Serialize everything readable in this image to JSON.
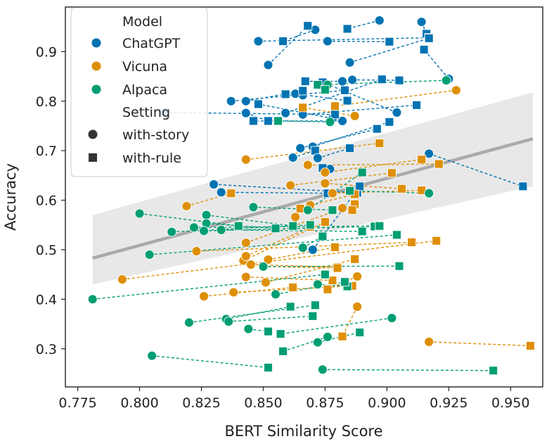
{
  "chart_data": {
    "type": "scatter",
    "xlabel": "BERT Similarity Score",
    "ylabel": "Accuracy",
    "xlim": [
      0.77,
      0.963
    ],
    "ylim": [
      0.223,
      0.99
    ],
    "x_ticks": [
      "0.775",
      "0.800",
      "0.825",
      "0.850",
      "0.875",
      "0.900",
      "0.925",
      "0.950"
    ],
    "y_ticks": [
      "0.3",
      "0.4",
      "0.5",
      "0.6",
      "0.7",
      "0.8",
      "0.9"
    ],
    "grid": false,
    "legend": {
      "placement": "top-left",
      "model_title": "Model",
      "setting_title": "Setting",
      "models": [
        {
          "name": "ChatGPT",
          "color": "#0173b2"
        },
        {
          "name": "Vicuna",
          "color": "#de8f05"
        },
        {
          "name": "Alpaca",
          "color": "#029e73"
        }
      ],
      "settings": [
        {
          "name": "with-story",
          "marker": "circle"
        },
        {
          "name": "with-rule",
          "marker": "square"
        }
      ]
    },
    "regression": {
      "from": [
        0.781,
        0.483
      ],
      "to": [
        0.959,
        0.724
      ],
      "ci_low": [
        0.43,
        0.628
      ],
      "ci_high": [
        0.57,
        0.818
      ],
      "color": "#aaaaaa"
    },
    "series": [
      {
        "name": "ChatGPT",
        "color": "#0173b2",
        "pairs": [
          [
            [
              0.914,
              0.96
            ],
            [
              0.916,
              0.936
            ]
          ],
          [
            [
              0.848,
              0.921
            ],
            [
              0.917,
              0.928
            ]
          ],
          [
            [
              0.871,
              0.944
            ],
            [
              0.858,
              0.921
            ]
          ],
          [
            [
              0.876,
              0.921
            ],
            [
              0.901,
              0.92
            ]
          ],
          [
            [
              0.852,
              0.873
            ],
            [
              0.868,
              0.952
            ]
          ],
          [
            [
              0.885,
              0.878
            ],
            [
              0.917,
              0.927
            ]
          ],
          [
            [
              0.897,
              0.963
            ],
            [
              0.884,
              0.946
            ]
          ],
          [
            [
              0.925,
              0.845
            ],
            [
              0.915,
              0.904
            ]
          ],
          [
            [
              0.886,
              0.843
            ],
            [
              0.905,
              0.842
            ]
          ],
          [
            [
              0.882,
              0.84
            ],
            [
              0.867,
              0.84
            ]
          ],
          [
            [
              0.904,
              0.777
            ],
            [
              0.874,
              0.838
            ]
          ],
          [
            [
              0.866,
              0.812
            ],
            [
              0.859,
              0.814
            ]
          ],
          [
            [
              0.863,
              0.815
            ],
            [
              0.884,
              0.801
            ]
          ],
          [
            [
              0.859,
              0.776
            ],
            [
              0.898,
              0.844
            ]
          ],
          [
            [
              0.843,
              0.8
            ],
            [
              0.866,
              0.821
            ]
          ],
          [
            [
              0.882,
              0.76
            ],
            [
              0.846,
              0.76
            ]
          ],
          [
            [
              0.837,
              0.8
            ],
            [
              0.883,
              0.822
            ]
          ],
          [
            [
              0.843,
              0.776
            ],
            [
              0.852,
              0.76
            ]
          ],
          [
            [
              0.878,
              0.765
            ],
            [
              0.848,
              0.794
            ]
          ],
          [
            [
              0.866,
              0.773
            ],
            [
              0.912,
              0.792
            ]
          ],
          [
            [
              0.81,
              0.777
            ],
            [
              0.879,
              0.773
            ]
          ],
          [
            [
              0.87,
              0.708
            ],
            [
              0.901,
              0.758
            ]
          ],
          [
            [
              0.865,
              0.705
            ],
            [
              0.896,
              0.744
            ]
          ],
          [
            [
              0.862,
              0.686
            ],
            [
              0.871,
              0.7
            ]
          ],
          [
            [
              0.872,
              0.685
            ],
            [
              0.885,
              0.705
            ]
          ],
          [
            [
              0.917,
              0.694
            ],
            [
              0.955,
              0.628
            ]
          ],
          [
            [
              0.877,
              0.663
            ],
            [
              0.874,
              0.665
            ]
          ],
          [
            [
              0.83,
              0.632
            ],
            [
              0.888,
              0.615
            ]
          ],
          [
            [
              0.833,
              0.616
            ],
            [
              0.876,
              0.614
            ]
          ],
          [
            [
              0.87,
              0.5
            ],
            [
              0.889,
              0.628
            ]
          ]
        ]
      },
      {
        "name": "Vicuna",
        "color": "#de8f05",
        "pairs": [
          [
            [
              0.928,
              0.822
            ],
            [
              0.879,
              0.79
            ]
          ],
          [
            [
              0.887,
              0.77
            ],
            [
              0.866,
              0.787
            ]
          ],
          [
            [
              0.843,
              0.682
            ],
            [
              0.897,
              0.715
            ]
          ],
          [
            [
              0.868,
              0.671
            ],
            [
              0.921,
              0.673
            ]
          ],
          [
            [
              0.875,
              0.656
            ],
            [
              0.914,
              0.682
            ]
          ],
          [
            [
              0.861,
              0.63
            ],
            [
              0.902,
              0.655
            ]
          ],
          [
            [
              0.875,
              0.634
            ],
            [
              0.906,
              0.623
            ]
          ],
          [
            [
              0.819,
              0.588
            ],
            [
              0.837,
              0.614
            ]
          ],
          [
            [
              0.878,
              0.614
            ],
            [
              0.914,
              0.62
            ]
          ],
          [
            [
              0.869,
              0.59
            ],
            [
              0.887,
              0.612
            ]
          ],
          [
            [
              0.863,
              0.566
            ],
            [
              0.865,
              0.583
            ]
          ],
          [
            [
              0.843,
              0.514
            ],
            [
              0.887,
              0.592
            ]
          ],
          [
            [
              0.882,
              0.584
            ],
            [
              0.886,
              0.58
            ]
          ],
          [
            [
              0.823,
              0.497
            ],
            [
              0.91,
              0.515
            ]
          ],
          [
            [
              0.842,
              0.478
            ],
            [
              0.875,
              0.556
            ]
          ],
          [
            [
              0.843,
              0.487
            ],
            [
              0.869,
              0.546
            ]
          ],
          [
            [
              0.852,
              0.48
            ],
            [
              0.879,
              0.505
            ]
          ],
          [
            [
              0.845,
              0.47
            ],
            [
              0.88,
              0.465
            ]
          ],
          [
            [
              0.85,
              0.466
            ],
            [
              0.88,
              0.463
            ]
          ],
          [
            [
              0.851,
              0.434
            ],
            [
              0.887,
              0.481
            ]
          ],
          [
            [
              0.843,
              0.445
            ],
            [
              0.878,
              0.438
            ]
          ],
          [
            [
              0.826,
              0.406
            ],
            [
              0.862,
              0.424
            ]
          ],
          [
            [
              0.838,
              0.414
            ],
            [
              0.886,
              0.427
            ]
          ],
          [
            [
              0.888,
              0.446
            ],
            [
              0.876,
              0.42
            ]
          ],
          [
            [
              0.793,
              0.44
            ],
            [
              0.92,
              0.518
            ]
          ],
          [
            [
              0.888,
              0.385
            ],
            [
              0.882,
              0.325
            ]
          ],
          [
            [
              0.917,
              0.314
            ],
            [
              0.958,
              0.306
            ]
          ]
        ]
      },
      {
        "name": "Alpaca",
        "color": "#029e73",
        "pairs": [
          [
            [
              0.924,
              0.842
            ],
            [
              0.872,
              0.833
            ]
          ],
          [
            [
              0.876,
              0.833
            ],
            [
              0.875,
              0.823
            ]
          ],
          [
            [
              0.877,
              0.758
            ],
            [
              0.856,
              0.76
            ]
          ],
          [
            [
              0.868,
              0.58
            ],
            [
              0.89,
              0.656
            ]
          ],
          [
            [
              0.917,
              0.614
            ],
            [
              0.885,
              0.619
            ]
          ],
          [
            [
              0.846,
              0.586
            ],
            [
              0.878,
              0.58
            ]
          ],
          [
            [
              0.8,
              0.573
            ],
            [
              0.84,
              0.548
            ]
          ],
          [
            [
              0.827,
              0.57
            ],
            [
              0.862,
              0.548
            ]
          ],
          [
            [
              0.813,
              0.536
            ],
            [
              0.869,
              0.55
            ]
          ],
          [
            [
              0.827,
              0.553
            ],
            [
              0.855,
              0.543
            ]
          ],
          [
            [
              0.826,
              0.538
            ],
            [
              0.895,
              0.547
            ]
          ],
          [
            [
              0.833,
              0.54
            ],
            [
              0.89,
              0.537
            ]
          ],
          [
            [
              0.822,
              0.545
            ],
            [
              0.897,
              0.548
            ]
          ],
          [
            [
              0.804,
              0.49
            ],
            [
              0.904,
              0.53
            ]
          ],
          [
            [
              0.85,
              0.466
            ],
            [
              0.905,
              0.467
            ]
          ],
          [
            [
              0.866,
              0.504
            ],
            [
              0.874,
              0.527
            ]
          ],
          [
            [
              0.872,
              0.43
            ],
            [
              0.884,
              0.426
            ]
          ],
          [
            [
              0.855,
              0.41
            ],
            [
              0.883,
              0.435
            ]
          ],
          [
            [
              0.82,
              0.353
            ],
            [
              0.871,
              0.388
            ]
          ],
          [
            [
              0.835,
              0.36
            ],
            [
              0.861,
              0.385
            ]
          ],
          [
            [
              0.836,
              0.355
            ],
            [
              0.87,
              0.366
            ]
          ],
          [
            [
              0.844,
              0.34
            ],
            [
              0.852,
              0.335
            ]
          ],
          [
            [
              0.872,
              0.313
            ],
            [
              0.889,
              0.333
            ]
          ],
          [
            [
              0.876,
              0.324
            ],
            [
              0.858,
              0.295
            ]
          ],
          [
            [
              0.781,
              0.4
            ],
            [
              0.875,
              0.45
            ]
          ],
          [
            [
              0.805,
              0.286
            ],
            [
              0.852,
              0.262
            ]
          ],
          [
            [
              0.874,
              0.258
            ],
            [
              0.943,
              0.256
            ]
          ],
          [
            [
              0.902,
              0.362
            ],
            [
              0.857,
              0.33
            ]
          ]
        ]
      }
    ]
  }
}
